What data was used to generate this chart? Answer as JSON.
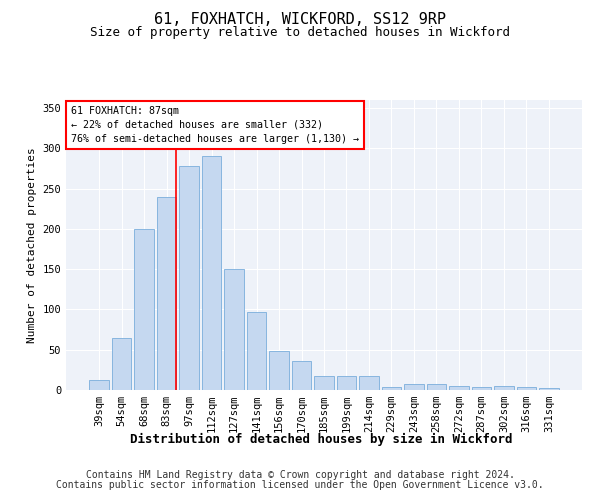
{
  "title1": "61, FOXHATCH, WICKFORD, SS12 9RP",
  "title2": "Size of property relative to detached houses in Wickford",
  "xlabel": "Distribution of detached houses by size in Wickford",
  "ylabel": "Number of detached properties",
  "categories": [
    "39sqm",
    "54sqm",
    "68sqm",
    "83sqm",
    "97sqm",
    "112sqm",
    "127sqm",
    "141sqm",
    "156sqm",
    "170sqm",
    "185sqm",
    "199sqm",
    "214sqm",
    "229sqm",
    "243sqm",
    "258sqm",
    "272sqm",
    "287sqm",
    "302sqm",
    "316sqm",
    "331sqm"
  ],
  "values": [
    12,
    65,
    200,
    240,
    278,
    290,
    150,
    97,
    49,
    36,
    17,
    18,
    18,
    4,
    8,
    7,
    5,
    4,
    5,
    4,
    3
  ],
  "bar_color": "#c5d8f0",
  "bar_edge_color": "#7aaedc",
  "annotation_text1": "61 FOXHATCH: 87sqm",
  "annotation_text2": "← 22% of detached houses are smaller (332)",
  "annotation_text3": "76% of semi-detached houses are larger (1,130) →",
  "footer1": "Contains HM Land Registry data © Crown copyright and database right 2024.",
  "footer2": "Contains public sector information licensed under the Open Government Licence v3.0.",
  "ylim": [
    0,
    360
  ],
  "yticks": [
    0,
    50,
    100,
    150,
    200,
    250,
    300,
    350
  ],
  "bg_color": "#eef2f9",
  "fig_bg": "#ffffff",
  "title1_fontsize": 11,
  "title2_fontsize": 9,
  "xlabel_fontsize": 9,
  "ylabel_fontsize": 8,
  "tick_fontsize": 7.5,
  "footer_fontsize": 7,
  "red_line_bar_index": 3,
  "bar_width": 0.85
}
